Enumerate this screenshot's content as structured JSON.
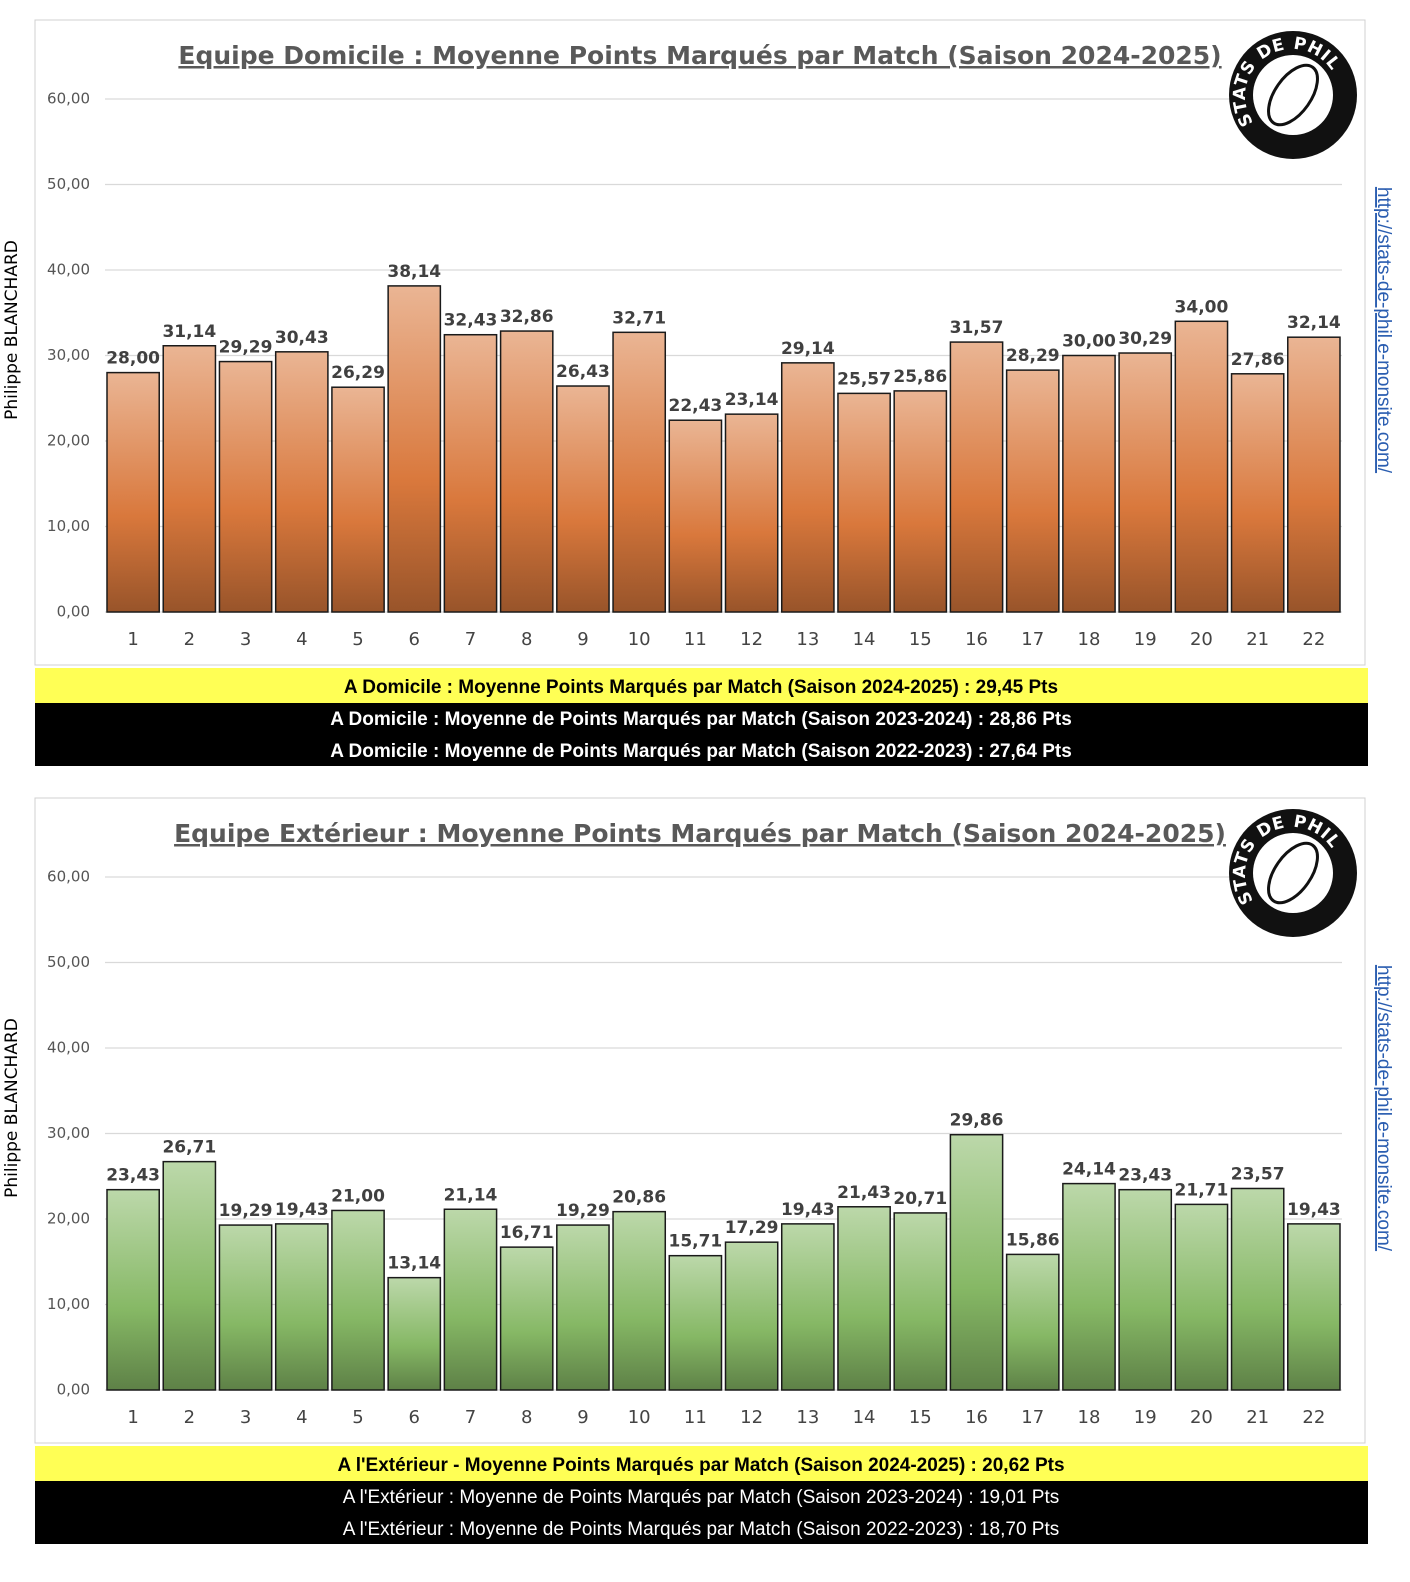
{
  "chart_data": [
    {
      "type": "bar",
      "title": "Equipe Domicile : Moyenne Points Marqués par Match (Saison 2024-2025)",
      "ylabel": "Philippe BLANCHARD",
      "side_label": "http://stats-de-phil.e-monsite.com/",
      "logo_text": "STATS DE PHIL",
      "categories": [
        "1",
        "2",
        "3",
        "4",
        "5",
        "6",
        "7",
        "8",
        "9",
        "10",
        "11",
        "12",
        "13",
        "14",
        "15",
        "16",
        "17",
        "18",
        "19",
        "20",
        "21",
        "22"
      ],
      "values": [
        28.0,
        31.14,
        29.29,
        30.43,
        26.29,
        38.14,
        32.43,
        32.86,
        26.43,
        32.71,
        22.43,
        23.14,
        29.14,
        25.57,
        25.86,
        31.57,
        28.29,
        30.0,
        30.29,
        34.0,
        27.86,
        32.14
      ],
      "value_labels": [
        "28,00",
        "31,14",
        "29,29",
        "30,43",
        "26,29",
        "38,14",
        "32,43",
        "32,86",
        "26,43",
        "32,71",
        "22,43",
        "23,14",
        "29,14",
        "25,57",
        "25,86",
        "31,57",
        "28,29",
        "30,00",
        "30,29",
        "34,00",
        "27,86",
        "32,14"
      ],
      "color": "#d9783c",
      "ylim": [
        0,
        60
      ],
      "yticks": [
        {
          "value": 0,
          "label": "0,00"
        },
        {
          "value": 10,
          "label": "10,00"
        },
        {
          "value": 20,
          "label": "20,00"
        },
        {
          "value": 30,
          "label": "30,00"
        },
        {
          "value": 40,
          "label": "40,00"
        },
        {
          "value": 50,
          "label": "50,00"
        },
        {
          "value": 60,
          "label": "60,00"
        }
      ],
      "grid": true,
      "summary": [
        "A Domicile : Moyenne Points Marqués par Match  (Saison 2024-2025)  : 29,45 Pts",
        "A Domicile : Moyenne de Points Marqués par Match (Saison 2023-2024) : 28,86 Pts",
        "A Domicile : Moyenne de Points Marqués par Match (Saison 2022-2023) : 27,64 Pts"
      ]
    },
    {
      "type": "bar",
      "title": "Equipe Extérieur : Moyenne Points Marqués par Match (Saison 2024-2025)",
      "ylabel": "Philippe BLANCHARD",
      "side_label": "http://stats-de-phil.e-monsite.com/",
      "logo_text": "STATS DE PHIL",
      "categories": [
        "1",
        "2",
        "3",
        "4",
        "5",
        "6",
        "7",
        "8",
        "9",
        "10",
        "11",
        "12",
        "13",
        "14",
        "15",
        "16",
        "17",
        "18",
        "19",
        "20",
        "21",
        "22"
      ],
      "values": [
        23.43,
        26.71,
        19.29,
        19.43,
        21.0,
        13.14,
        21.14,
        16.71,
        19.29,
        20.86,
        15.71,
        17.29,
        19.43,
        21.43,
        20.71,
        29.86,
        15.86,
        24.14,
        23.43,
        21.71,
        23.57,
        19.43
      ],
      "value_labels": [
        "23,43",
        "26,71",
        "19,29",
        "19,43",
        "21,00",
        "13,14",
        "21,14",
        "16,71",
        "19,29",
        "20,86",
        "15,71",
        "17,29",
        "19,43",
        "21,43",
        "20,71",
        "29,86",
        "15,86",
        "24,14",
        "23,43",
        "21,71",
        "23,57",
        "19,43"
      ],
      "color": "#86b865",
      "ylim": [
        0,
        60
      ],
      "yticks": [
        {
          "value": 0,
          "label": "0,00"
        },
        {
          "value": 10,
          "label": "10,00"
        },
        {
          "value": 20,
          "label": "20,00"
        },
        {
          "value": 30,
          "label": "30,00"
        },
        {
          "value": 40,
          "label": "40,00"
        },
        {
          "value": 50,
          "label": "50,00"
        },
        {
          "value": 60,
          "label": "60,00"
        }
      ],
      "grid": true,
      "summary": [
        "A l'Extérieur - Moyenne Points Marqués par Match (Saison 2024-2025)  : 20,62 Pts",
        "A l'Extérieur : Moyenne de Points Marqués par Match (Saison 2023-2024) : 19,01 Pts",
        "A l'Extérieur : Moyenne de Points Marqués par Match (Saison 2022-2023) : 18,70 Pts"
      ]
    }
  ]
}
